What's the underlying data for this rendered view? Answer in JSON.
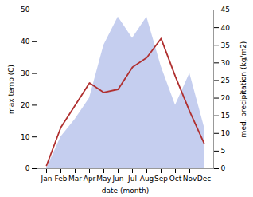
{
  "chart_data": {
    "type": "line",
    "categories": [
      "Jan",
      "Feb",
      "Mar",
      "Apr",
      "May",
      "Jun",
      "Jul",
      "Aug",
      "Sep",
      "Oct",
      "Nov",
      "Dec"
    ],
    "series": [
      {
        "type": "area",
        "axis": "y2",
        "color": "#bbc5ec",
        "values": [
          0,
          9,
          14,
          20,
          35,
          43,
          37,
          43,
          29,
          18,
          27,
          12
        ]
      },
      {
        "type": "line",
        "color": "#b03030",
        "values": [
          1,
          13,
          20,
          27,
          24,
          25,
          32,
          35,
          41,
          29,
          18,
          8
        ]
      }
    ],
    "xlabel": "date (month)",
    "ylabel": "max temp (C)",
    "y2label": "med. precipitation (kg/m2)",
    "ylim": [
      0,
      50
    ],
    "yticks": [
      0,
      10,
      20,
      30,
      40,
      50
    ],
    "y2lim": [
      0,
      45
    ],
    "y2ticks": [
      0,
      5,
      10,
      15,
      20,
      25,
      30,
      35,
      40,
      45
    ],
    "grid": false
  }
}
